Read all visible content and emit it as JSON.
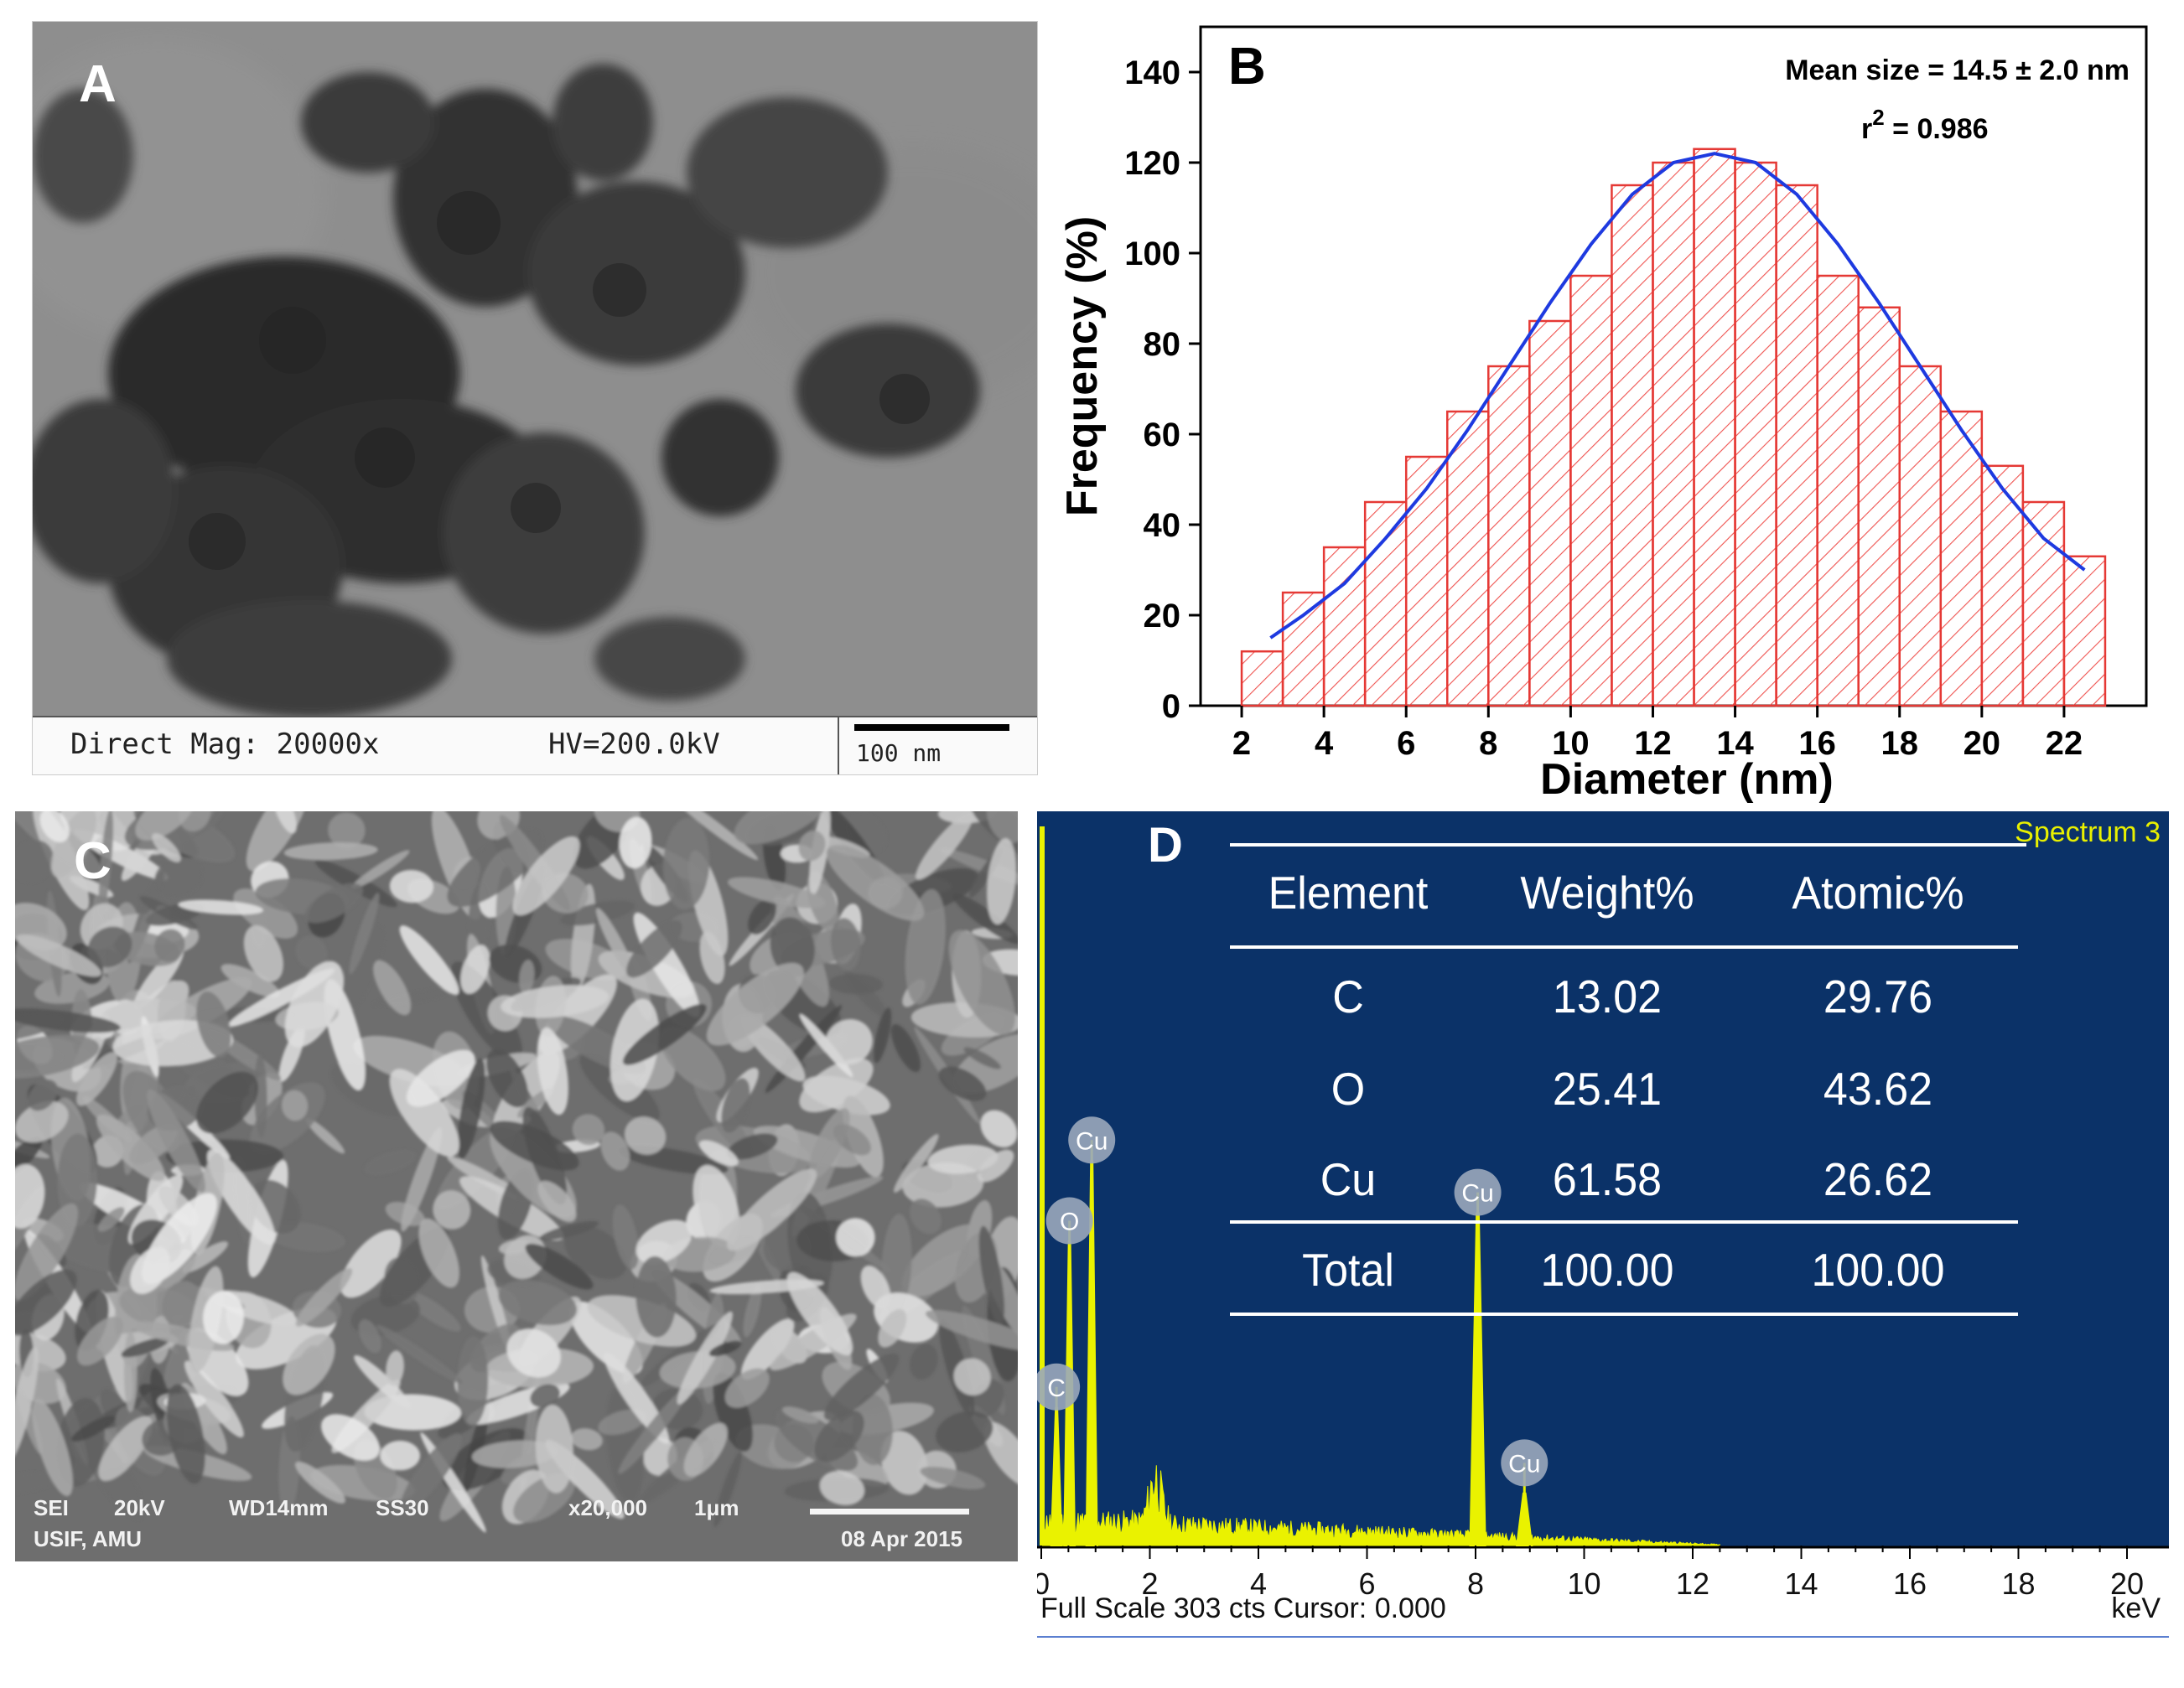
{
  "figure": {
    "panel_letters": {
      "a": "A",
      "b": "B",
      "c": "C",
      "d": "D"
    }
  },
  "tem": {
    "caption_mag": "Direct Mag: 20000x",
    "caption_hv": "HV=200.0kV",
    "scale_bar_label": "100 nm"
  },
  "sem": {
    "info_line1": [
      "SEI",
      "20kV",
      "WD14mm",
      "SS30",
      "x20,000",
      "1μm"
    ],
    "info_line2_left": "USIF, AMU",
    "date": "08 Apr 2015"
  },
  "colors": {
    "bar_edge": "#e53935",
    "bar_hatch": "#ef5350",
    "fit_line": "#1e3ae0",
    "edx_bg": "#0b3268",
    "edx_trace": "#eaf200",
    "edx_label_text": "#e8f000"
  },
  "chart_data": [
    {
      "type": "bar",
      "title": "",
      "xlabel": "Diameter (nm)",
      "ylabel": "Frequency (%)",
      "xlim": [
        1,
        24
      ],
      "ylim": [
        0,
        150
      ],
      "xticks": [
        2,
        4,
        6,
        8,
        10,
        12,
        14,
        16,
        18,
        20,
        22
      ],
      "yticks": [
        0,
        20,
        40,
        60,
        80,
        100,
        120,
        140
      ],
      "bin_width": 1,
      "x": [
        2.5,
        3.5,
        4.5,
        5.5,
        6.5,
        7.5,
        8.5,
        9.5,
        10.5,
        11.5,
        12.5,
        13.5,
        14.5,
        15.5,
        16.5,
        17.5,
        18.5,
        19.5,
        20.5,
        21.5,
        22.5
      ],
      "values": [
        12,
        25,
        35,
        45,
        55,
        65,
        75,
        85,
        95,
        115,
        120,
        123,
        120,
        115,
        95,
        88,
        75,
        65,
        53,
        45,
        33
      ],
      "fit": {
        "type": "gaussian",
        "x": [
          2.7,
          3.5,
          4.5,
          5.5,
          6.5,
          7.5,
          8.5,
          9.5,
          10.5,
          11.5,
          12.5,
          13.5,
          14.5,
          15.5,
          16.5,
          17.5,
          18.5,
          19.5,
          20.5,
          21.5,
          22.5
        ],
        "y": [
          15,
          20,
          27,
          37,
          48,
          61,
          75,
          89,
          102,
          113,
          120,
          122,
          120,
          113,
          102,
          89,
          75,
          61,
          48,
          37,
          30
        ]
      },
      "annotation_mean": "Mean size = 14.5 ± 2.0 nm",
      "annotation_r2_base": "r",
      "annotation_r2_exp": "2",
      "annotation_r2_value": " = 0.986"
    },
    {
      "type": "line",
      "title": "Spectrum 3",
      "xlabel": "keV",
      "xlim": [
        0,
        20
      ],
      "xticks": [
        0,
        2,
        4,
        6,
        8,
        10,
        12,
        14,
        16,
        18,
        20
      ],
      "ylim": [
        0,
        303
      ],
      "footer": "Full Scale 303 cts Cursor: 0.000",
      "peaks": [
        {
          "label": "C",
          "kev": 0.28,
          "counts": 58
        },
        {
          "label": "O",
          "kev": 0.52,
          "counts": 128
        },
        {
          "label": "Cu",
          "kev": 0.93,
          "counts": 162
        },
        {
          "label": "Cu",
          "kev": 8.04,
          "counts": 140
        },
        {
          "label": "Cu",
          "kev": 8.9,
          "counts": 22
        }
      ],
      "label_positions": [
        {
          "label": "Cu",
          "kev": 0.93,
          "counts": 162
        },
        {
          "label": "O",
          "kev": 0.52,
          "counts": 128
        },
        {
          "label": "C",
          "kev": 0.28,
          "counts": 58
        },
        {
          "label": "Cu",
          "kev": 8.04,
          "counts": 140
        },
        {
          "label": "Cu",
          "kev": 8.9,
          "counts": 26
        }
      ],
      "table": {
        "headers": [
          "Element",
          "Weight%",
          "Atomic%"
        ],
        "rows": [
          [
            "C",
            "13.02",
            "29.76"
          ],
          [
            "O",
            "25.41",
            "43.62"
          ],
          [
            "Cu",
            "61.58",
            "26.62"
          ]
        ],
        "total": [
          "Total",
          "100.00",
          "100.00"
        ]
      }
    }
  ]
}
